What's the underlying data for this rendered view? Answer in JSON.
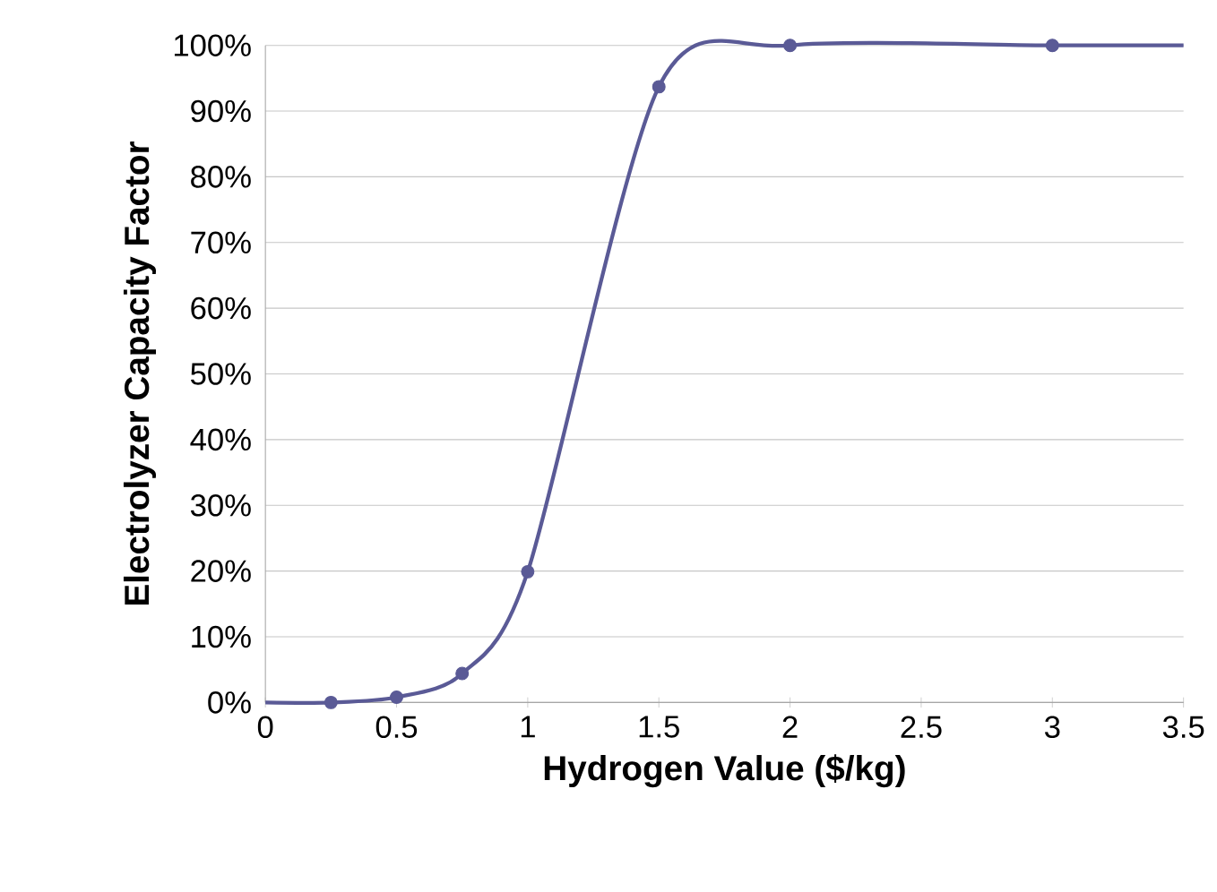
{
  "chart_data": {
    "type": "line",
    "xlabel": "Hydrogen Value ($/kg)",
    "ylabel": "Electrolyzer Capacity Factor",
    "xlim": [
      0,
      3.5
    ],
    "xticks": [
      0,
      0.5,
      1,
      1.5,
      2,
      2.5,
      3,
      3.5
    ],
    "ylim": [
      0,
      100
    ],
    "yticks": [
      {
        "value": 0,
        "label": "0%"
      },
      {
        "value": 10,
        "label": "10%"
      },
      {
        "value": 20,
        "label": "20%"
      },
      {
        "value": 30,
        "label": "30%"
      },
      {
        "value": 40,
        "label": "40%"
      },
      {
        "value": 50,
        "label": "50%"
      },
      {
        "value": 60,
        "label": "60%"
      },
      {
        "value": 70,
        "label": "70%"
      },
      {
        "value": 80,
        "label": "80%"
      },
      {
        "value": 90,
        "label": "90%"
      },
      {
        "value": 100,
        "label": "100%"
      }
    ],
    "grid": "y",
    "series": [
      {
        "marker": "none",
        "color": "#5a5a96",
        "x": [
          0,
          0.25,
          0.5,
          0.75,
          1,
          1.5,
          2,
          3,
          3.5
        ],
        "values": [
          0,
          0,
          0.8,
          4.4,
          19.9,
          93.7,
          100,
          100,
          100
        ]
      },
      {
        "type": "scatter",
        "marker": "circle",
        "color": "#5a5a96",
        "x": [
          0.25,
          0.5,
          0.75,
          1,
          1.5,
          2,
          3
        ],
        "values": [
          0,
          0.8,
          4.4,
          19.9,
          93.7,
          100,
          100
        ]
      }
    ]
  }
}
